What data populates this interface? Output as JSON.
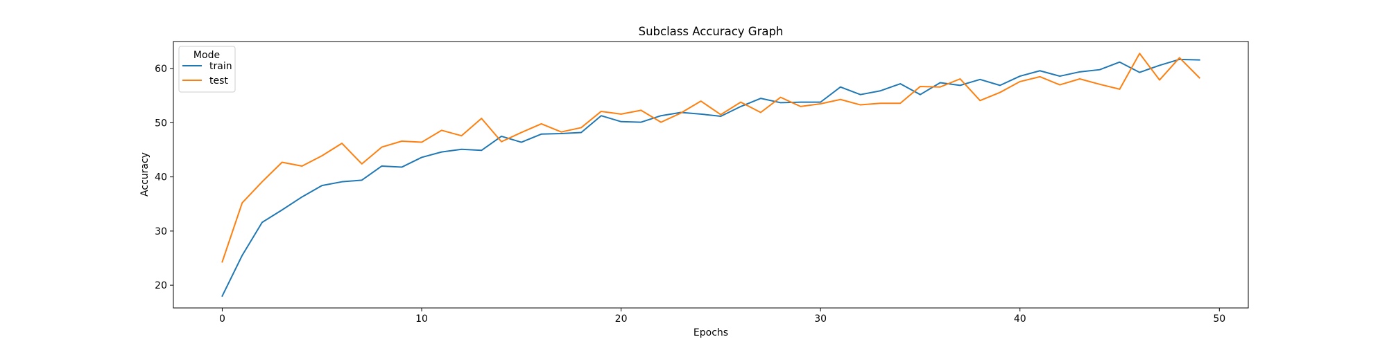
{
  "chart_data": {
    "type": "line",
    "title": "Subclass Accuracy Graph",
    "xlabel": "Epochs",
    "ylabel": "Accuracy",
    "xlim": [
      -2.45,
      51.45
    ],
    "ylim": [
      15.8,
      65.0
    ],
    "xticks": [
      0,
      10,
      20,
      30,
      40,
      50
    ],
    "yticks": [
      20,
      30,
      40,
      50,
      60
    ],
    "legend": {
      "title": "Mode",
      "placement": "top-left"
    },
    "x": [
      0,
      1,
      2,
      3,
      4,
      5,
      6,
      7,
      8,
      9,
      10,
      11,
      12,
      13,
      14,
      15,
      16,
      17,
      18,
      19,
      20,
      21,
      22,
      23,
      24,
      25,
      26,
      27,
      28,
      29,
      30,
      31,
      32,
      33,
      34,
      35,
      36,
      37,
      38,
      39,
      40,
      41,
      42,
      43,
      44,
      45,
      46,
      47,
      48,
      49
    ],
    "series": [
      {
        "name": "train",
        "color": "#1f77b4",
        "values": [
          18.0,
          25.5,
          31.6,
          33.9,
          36.3,
          38.4,
          39.1,
          39.4,
          42.0,
          41.8,
          43.6,
          44.6,
          45.1,
          44.9,
          47.5,
          46.4,
          47.9,
          48.0,
          48.2,
          51.3,
          50.2,
          50.1,
          51.3,
          51.9,
          51.6,
          51.2,
          53.0,
          54.5,
          53.7,
          53.8,
          53.8,
          56.6,
          55.2,
          55.9,
          57.2,
          55.2,
          57.4,
          56.9,
          58.0,
          56.9,
          58.6,
          59.6,
          58.6,
          59.4,
          59.8,
          61.2,
          59.3,
          60.6,
          61.7,
          61.6
        ]
      },
      {
        "name": "test",
        "color": "#ff7f0e",
        "values": [
          24.3,
          35.2,
          39.1,
          42.7,
          42.0,
          43.9,
          46.2,
          42.4,
          45.5,
          46.6,
          46.4,
          48.6,
          47.6,
          50.8,
          46.5,
          48.2,
          49.8,
          48.3,
          49.1,
          52.1,
          51.6,
          52.3,
          50.1,
          51.8,
          54.0,
          51.5,
          53.8,
          51.9,
          54.7,
          53.0,
          53.5,
          54.3,
          53.3,
          53.6,
          53.6,
          56.7,
          56.6,
          58.1,
          54.1,
          55.6,
          57.6,
          58.5,
          57.0,
          58.1,
          57.1,
          56.2,
          62.8,
          57.9,
          62.0,
          58.3
        ]
      }
    ]
  }
}
